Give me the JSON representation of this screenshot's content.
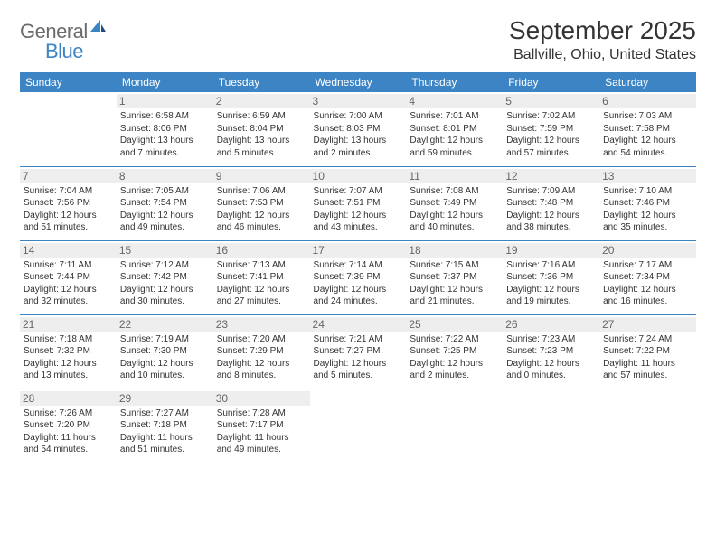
{
  "logo": {
    "general": "General",
    "blue": "Blue"
  },
  "title": "September 2025",
  "location": "Ballville, Ohio, United States",
  "colors": {
    "accent": "#3d84c4",
    "header_text": "#ffffff",
    "daynum_bg": "#eeeeee",
    "text": "#333333"
  },
  "weekdays": [
    "Sunday",
    "Monday",
    "Tuesday",
    "Wednesday",
    "Thursday",
    "Friday",
    "Saturday"
  ],
  "weeks": [
    [
      null,
      {
        "n": "1",
        "sr": "Sunrise: 6:58 AM",
        "ss": "Sunset: 8:06 PM",
        "dl": "Daylight: 13 hours and 7 minutes."
      },
      {
        "n": "2",
        "sr": "Sunrise: 6:59 AM",
        "ss": "Sunset: 8:04 PM",
        "dl": "Daylight: 13 hours and 5 minutes."
      },
      {
        "n": "3",
        "sr": "Sunrise: 7:00 AM",
        "ss": "Sunset: 8:03 PM",
        "dl": "Daylight: 13 hours and 2 minutes."
      },
      {
        "n": "4",
        "sr": "Sunrise: 7:01 AM",
        "ss": "Sunset: 8:01 PM",
        "dl": "Daylight: 12 hours and 59 minutes."
      },
      {
        "n": "5",
        "sr": "Sunrise: 7:02 AM",
        "ss": "Sunset: 7:59 PM",
        "dl": "Daylight: 12 hours and 57 minutes."
      },
      {
        "n": "6",
        "sr": "Sunrise: 7:03 AM",
        "ss": "Sunset: 7:58 PM",
        "dl": "Daylight: 12 hours and 54 minutes."
      }
    ],
    [
      {
        "n": "7",
        "sr": "Sunrise: 7:04 AM",
        "ss": "Sunset: 7:56 PM",
        "dl": "Daylight: 12 hours and 51 minutes."
      },
      {
        "n": "8",
        "sr": "Sunrise: 7:05 AM",
        "ss": "Sunset: 7:54 PM",
        "dl": "Daylight: 12 hours and 49 minutes."
      },
      {
        "n": "9",
        "sr": "Sunrise: 7:06 AM",
        "ss": "Sunset: 7:53 PM",
        "dl": "Daylight: 12 hours and 46 minutes."
      },
      {
        "n": "10",
        "sr": "Sunrise: 7:07 AM",
        "ss": "Sunset: 7:51 PM",
        "dl": "Daylight: 12 hours and 43 minutes."
      },
      {
        "n": "11",
        "sr": "Sunrise: 7:08 AM",
        "ss": "Sunset: 7:49 PM",
        "dl": "Daylight: 12 hours and 40 minutes."
      },
      {
        "n": "12",
        "sr": "Sunrise: 7:09 AM",
        "ss": "Sunset: 7:48 PM",
        "dl": "Daylight: 12 hours and 38 minutes."
      },
      {
        "n": "13",
        "sr": "Sunrise: 7:10 AM",
        "ss": "Sunset: 7:46 PM",
        "dl": "Daylight: 12 hours and 35 minutes."
      }
    ],
    [
      {
        "n": "14",
        "sr": "Sunrise: 7:11 AM",
        "ss": "Sunset: 7:44 PM",
        "dl": "Daylight: 12 hours and 32 minutes."
      },
      {
        "n": "15",
        "sr": "Sunrise: 7:12 AM",
        "ss": "Sunset: 7:42 PM",
        "dl": "Daylight: 12 hours and 30 minutes."
      },
      {
        "n": "16",
        "sr": "Sunrise: 7:13 AM",
        "ss": "Sunset: 7:41 PM",
        "dl": "Daylight: 12 hours and 27 minutes."
      },
      {
        "n": "17",
        "sr": "Sunrise: 7:14 AM",
        "ss": "Sunset: 7:39 PM",
        "dl": "Daylight: 12 hours and 24 minutes."
      },
      {
        "n": "18",
        "sr": "Sunrise: 7:15 AM",
        "ss": "Sunset: 7:37 PM",
        "dl": "Daylight: 12 hours and 21 minutes."
      },
      {
        "n": "19",
        "sr": "Sunrise: 7:16 AM",
        "ss": "Sunset: 7:36 PM",
        "dl": "Daylight: 12 hours and 19 minutes."
      },
      {
        "n": "20",
        "sr": "Sunrise: 7:17 AM",
        "ss": "Sunset: 7:34 PM",
        "dl": "Daylight: 12 hours and 16 minutes."
      }
    ],
    [
      {
        "n": "21",
        "sr": "Sunrise: 7:18 AM",
        "ss": "Sunset: 7:32 PM",
        "dl": "Daylight: 12 hours and 13 minutes."
      },
      {
        "n": "22",
        "sr": "Sunrise: 7:19 AM",
        "ss": "Sunset: 7:30 PM",
        "dl": "Daylight: 12 hours and 10 minutes."
      },
      {
        "n": "23",
        "sr": "Sunrise: 7:20 AM",
        "ss": "Sunset: 7:29 PM",
        "dl": "Daylight: 12 hours and 8 minutes."
      },
      {
        "n": "24",
        "sr": "Sunrise: 7:21 AM",
        "ss": "Sunset: 7:27 PM",
        "dl": "Daylight: 12 hours and 5 minutes."
      },
      {
        "n": "25",
        "sr": "Sunrise: 7:22 AM",
        "ss": "Sunset: 7:25 PM",
        "dl": "Daylight: 12 hours and 2 minutes."
      },
      {
        "n": "26",
        "sr": "Sunrise: 7:23 AM",
        "ss": "Sunset: 7:23 PM",
        "dl": "Daylight: 12 hours and 0 minutes."
      },
      {
        "n": "27",
        "sr": "Sunrise: 7:24 AM",
        "ss": "Sunset: 7:22 PM",
        "dl": "Daylight: 11 hours and 57 minutes."
      }
    ],
    [
      {
        "n": "28",
        "sr": "Sunrise: 7:26 AM",
        "ss": "Sunset: 7:20 PM",
        "dl": "Daylight: 11 hours and 54 minutes."
      },
      {
        "n": "29",
        "sr": "Sunrise: 7:27 AM",
        "ss": "Sunset: 7:18 PM",
        "dl": "Daylight: 11 hours and 51 minutes."
      },
      {
        "n": "30",
        "sr": "Sunrise: 7:28 AM",
        "ss": "Sunset: 7:17 PM",
        "dl": "Daylight: 11 hours and 49 minutes."
      },
      null,
      null,
      null,
      null
    ]
  ]
}
